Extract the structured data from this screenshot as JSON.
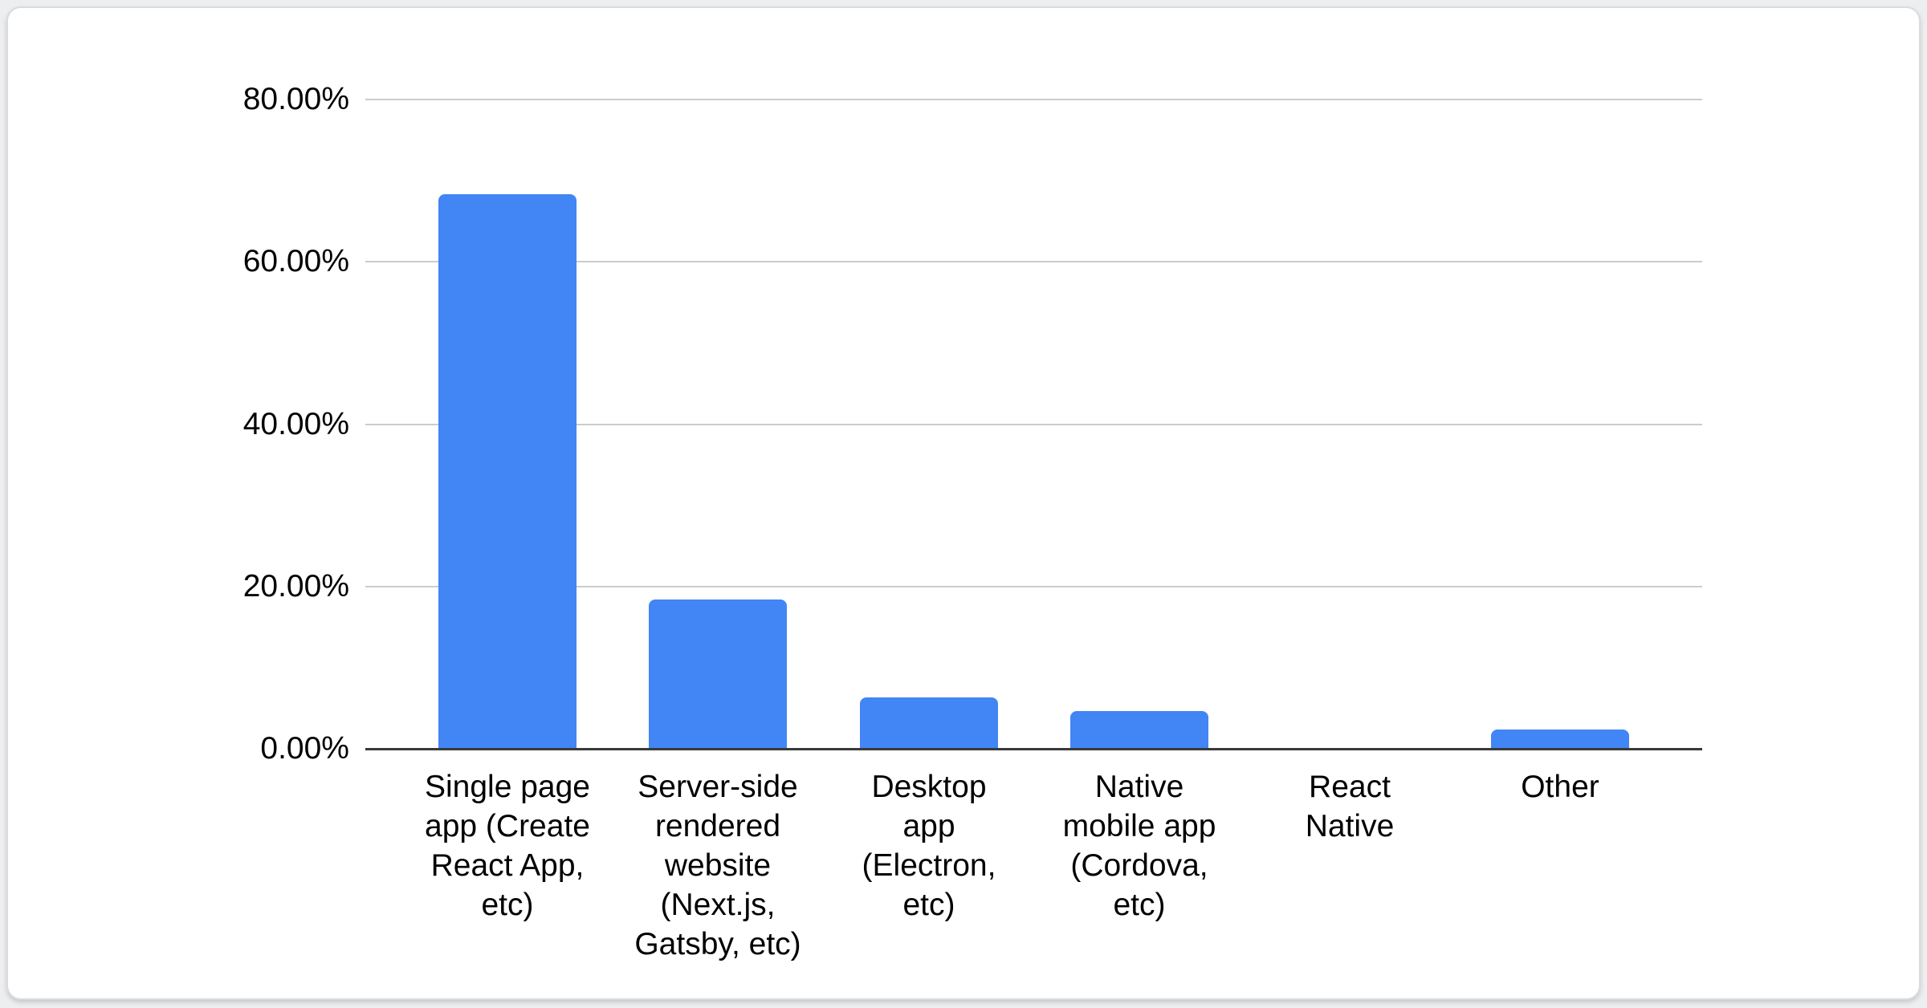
{
  "page": {
    "background_color": "#edeeef"
  },
  "card": {
    "background_color": "#ffffff",
    "border_color": "#d9dbde"
  },
  "chart_data": {
    "type": "bar",
    "title": "",
    "xlabel": "",
    "ylabel": "",
    "legend": "none",
    "grid": true,
    "ylim": [
      0,
      80
    ],
    "categories": [
      "Single page app (Create React App, etc)",
      "Server-side rendered website (Next.js, Gatsby, etc)",
      "Desktop app (Electron, etc)",
      "Native mobile app (Cordova, etc)",
      "React Native",
      "Other"
    ],
    "category_label_lines": [
      [
        "Single page",
        "app (Create",
        "React App,",
        "etc)"
      ],
      [
        "Server-side",
        "rendered",
        "website",
        "(Next.js,",
        "Gatsby, etc)"
      ],
      [
        "Desktop",
        "app",
        "(Electron,",
        "etc)"
      ],
      [
        "Native",
        "mobile app",
        "(Cordova,",
        "etc)"
      ],
      [
        "React",
        "Native"
      ],
      [
        "Other"
      ]
    ],
    "values": [
      68.3,
      18.4,
      6.3,
      4.6,
      0.0,
      2.4
    ],
    "unit": "%",
    "yticks": [
      {
        "value": 0,
        "label": "0.00%"
      },
      {
        "value": 20,
        "label": "20.00%"
      },
      {
        "value": 40,
        "label": "40.00%"
      },
      {
        "value": 60,
        "label": "60.00%"
      },
      {
        "value": 80,
        "label": "80.00%"
      }
    ],
    "bar_color": "#4285f4",
    "gridline_color": "#cccccc",
    "axis_line_color": "#3a3a3a",
    "label_color": "#000000"
  }
}
